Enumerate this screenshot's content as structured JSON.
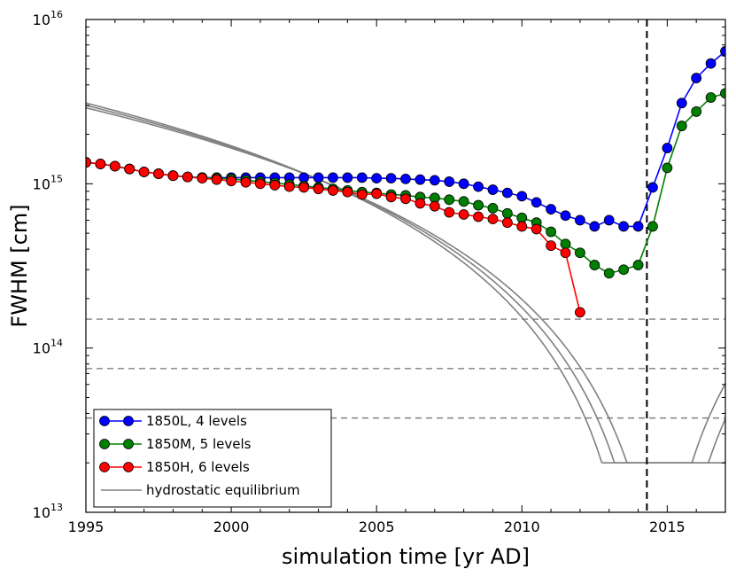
{
  "chart_data": {
    "type": "line",
    "xlabel": "simulation time [yr AD]",
    "ylabel": "FWHM [cm]",
    "yscale": "log",
    "xlim": [
      1995,
      2017
    ],
    "ylim": [
      10000000000000.0,
      1e+16
    ],
    "x_ticks": [
      1995,
      2000,
      2005,
      2010,
      2015
    ],
    "x_tick_labels": [
      "1995",
      "2000",
      "2005",
      "2010",
      "2015"
    ],
    "y_ticks": [
      {
        "value": 10000000000000.0,
        "base": "10",
        "exp": "13"
      },
      {
        "value": 100000000000000.0,
        "base": "10",
        "exp": "14"
      },
      {
        "value": 1000000000000000.0,
        "base": "10",
        "exp": "15"
      },
      {
        "value": 1e+16,
        "base": "10",
        "exp": "16"
      }
    ],
    "vline": {
      "x": 2014.3,
      "color": "#000000",
      "style": "dashed"
    },
    "hlines": [
      {
        "y": 150000000000000.0,
        "color": "#808080",
        "style": "dashed"
      },
      {
        "y": 75000000000000.0,
        "color": "#808080",
        "style": "dashed"
      },
      {
        "y": 37500000000000.0,
        "color": "#808080",
        "style": "dashed"
      }
    ],
    "series": [
      {
        "name": "1850L, 4 levels",
        "color": "#0000ff",
        "marker": "circle",
        "x": [
          1995,
          1995.5,
          1996,
          1996.5,
          1997,
          1997.5,
          1998,
          1998.5,
          1999,
          1999.5,
          2000,
          2000.5,
          2001,
          2001.5,
          2002,
          2002.5,
          2003,
          2003.5,
          2004,
          2004.5,
          2005,
          2005.5,
          2006,
          2006.5,
          2007,
          2007.5,
          2008,
          2008.5,
          2009,
          2009.5,
          2010,
          2010.5,
          2011,
          2011.5,
          2012,
          2012.5,
          2013,
          2013.5,
          2014,
          2014.5,
          2015,
          2015.5,
          2016,
          2016.5,
          2017
        ],
        "y": [
          1350000000000000.0,
          1320000000000000.0,
          1280000000000000.0,
          1230000000000000.0,
          1180000000000000.0,
          1150000000000000.0,
          1120000000000000.0,
          1100000000000000.0,
          1090000000000000.0,
          1090000000000000.0,
          1090000000000000.0,
          1090000000000000.0,
          1090000000000000.0,
          1090000000000000.0,
          1090000000000000.0,
          1090000000000000.0,
          1090000000000000.0,
          1090000000000000.0,
          1090000000000000.0,
          1090000000000000.0,
          1080000000000000.0,
          1080000000000000.0,
          1070000000000000.0,
          1060000000000000.0,
          1050000000000000.0,
          1030000000000000.0,
          1000000000000000.0,
          960000000000000.0,
          920000000000000.0,
          880000000000000.0,
          840000000000000.0,
          770000000000000.0,
          700000000000000.0,
          640000000000000.0,
          600000000000000.0,
          550000000000000.0,
          600000000000000.0,
          550000000000000.0,
          550000000000000.0,
          950000000000000.0,
          1650000000000000.0,
          3100000000000000.0,
          4400000000000000.0,
          5400000000000000.0,
          6400000000000000.0
        ]
      },
      {
        "name": "1850M, 5 levels",
        "color": "#008000",
        "marker": "circle",
        "x": [
          1995,
          1995.5,
          1996,
          1996.5,
          1997,
          1997.5,
          1998,
          1998.5,
          1999,
          1999.5,
          2000,
          2000.5,
          2001,
          2001.5,
          2002,
          2002.5,
          2003,
          2003.5,
          2004,
          2004.5,
          2005,
          2005.5,
          2006,
          2006.5,
          2007,
          2007.5,
          2008,
          2008.5,
          2009,
          2009.5,
          2010,
          2010.5,
          2011,
          2011.5,
          2012,
          2012.5,
          2013,
          2013.5,
          2014,
          2014.5,
          2015,
          2015.5,
          2016,
          2016.5,
          2017
        ],
        "y": [
          1350000000000000.0,
          1320000000000000.0,
          1280000000000000.0,
          1230000000000000.0,
          1180000000000000.0,
          1150000000000000.0,
          1120000000000000.0,
          1100000000000000.0,
          1090000000000000.0,
          1080000000000000.0,
          1070000000000000.0,
          1050000000000000.0,
          1030000000000000.0,
          1010000000000000.0,
          990000000000000.0,
          970000000000000.0,
          950000000000000.0,
          930000000000000.0,
          910000000000000.0,
          890000000000000.0,
          880000000000000.0,
          860000000000000.0,
          850000000000000.0,
          830000000000000.0,
          820000000000000.0,
          800000000000000.0,
          780000000000000.0,
          740000000000000.0,
          710000000000000.0,
          660000000000000.0,
          620000000000000.0,
          580000000000000.0,
          510000000000000.0,
          430000000000000.0,
          380000000000000.0,
          320000000000000.0,
          285000000000000.0,
          300000000000000.0,
          320000000000000.0,
          550000000000000.0,
          1250000000000000.0,
          2250000000000000.0,
          2750000000000000.0,
          3350000000000000.0,
          3550000000000000.0
        ]
      },
      {
        "name": "1850H, 6 levels",
        "color": "#ff0000",
        "marker": "circle",
        "x": [
          1995,
          1995.5,
          1996,
          1996.5,
          1997,
          1997.5,
          1998,
          1998.5,
          1999,
          1999.5,
          2000,
          2000.5,
          2001,
          2001.5,
          2002,
          2002.5,
          2003,
          2003.5,
          2004,
          2004.5,
          2005,
          2005.5,
          2006,
          2006.5,
          2007,
          2007.5,
          2008,
          2008.5,
          2009,
          2009.5,
          2010,
          2010.5,
          2011,
          2011.5,
          2012
        ],
        "y": [
          1350000000000000.0,
          1320000000000000.0,
          1280000000000000.0,
          1230000000000000.0,
          1180000000000000.0,
          1150000000000000.0,
          1120000000000000.0,
          1100000000000000.0,
          1080000000000000.0,
          1060000000000000.0,
          1040000000000000.0,
          1020000000000000.0,
          1000000000000000.0,
          980000000000000.0,
          960000000000000.0,
          950000000000000.0,
          930000000000000.0,
          910000000000000.0,
          890000000000000.0,
          860000000000000.0,
          870000000000000.0,
          830000000000000.0,
          810000000000000.0,
          760000000000000.0,
          730000000000000.0,
          670000000000000.0,
          650000000000000.0,
          630000000000000.0,
          610000000000000.0,
          580000000000000.0,
          550000000000000.0,
          530000000000000.0,
          420000000000000.0,
          380000000000000.0,
          165000000000000.0
        ]
      },
      {
        "name": "hydrostatic equilibrium",
        "color": "#808080",
        "marker": "none",
        "curves": [
          {
            "t0": 2014.3,
            "amp": 3100000000000000.0,
            "floor": 20000000000000.0
          },
          {
            "t0": 2014.8,
            "amp": 3000000000000000.0,
            "floor": 20000000000000.0
          },
          {
            "t0": 2015.3,
            "amp": 2900000000000000.0,
            "floor": 20000000000000.0
          }
        ]
      }
    ],
    "legend": {
      "position": "lower-left",
      "entries": [
        "1850L, 4 levels",
        "1850M, 5 levels",
        "1850H, 6 levels",
        "hydrostatic equilibrium"
      ]
    }
  }
}
